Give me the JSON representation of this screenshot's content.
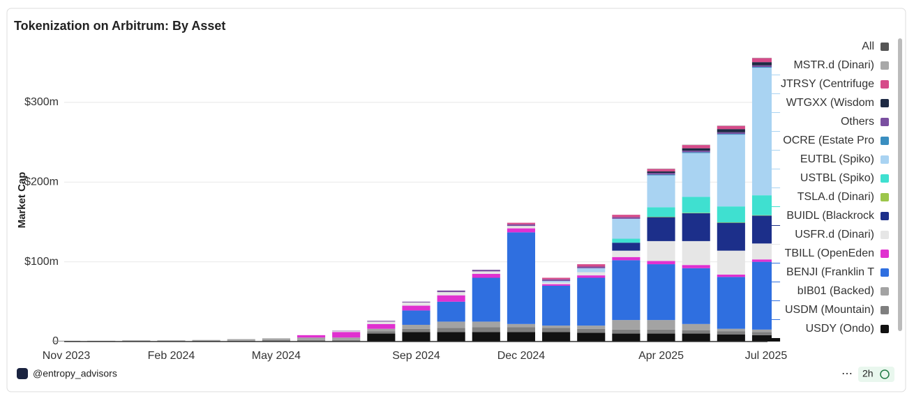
{
  "chart_data": {
    "type": "stacked_bar",
    "title": "Tokenization on Arbitrum: By Asset",
    "y_label": "Market Cap",
    "legend_all": "All",
    "legend_all_color": "#555555",
    "footer_handle": "@entropy_advisors",
    "footer_menu": "⋯",
    "footer_refresh": "2h",
    "x": [
      "2023-11",
      "2023-12",
      "2024-01",
      "2024-02",
      "2024-03",
      "2024-04",
      "2024-05",
      "2024-06",
      "2024-07",
      "2024-08",
      "2024-09",
      "2024-10",
      "2024-11",
      "2024-12",
      "2025-01",
      "2025-02",
      "2025-03",
      "2025-04",
      "2025-05",
      "2025-06",
      "2025-07"
    ],
    "xticks": [
      {
        "value": "2023-11",
        "label": "Nov 2023"
      },
      {
        "value": "2024-02",
        "label": "Feb 2024"
      },
      {
        "value": "2024-05",
        "label": "May 2024"
      },
      {
        "value": "2024-09",
        "label": "Sep 2024"
      },
      {
        "value": "2024-12",
        "label": "Dec 2024"
      },
      {
        "value": "2025-04",
        "label": "Apr 2025"
      },
      {
        "value": "2025-07",
        "label": "Jul 2025"
      }
    ],
    "ylim": [
      0,
      376
    ],
    "yticks": [
      0,
      {
        "value": 100,
        "label": "$100m"
      },
      {
        "value": 200,
        "label": "$200m"
      },
      {
        "value": 300,
        "label": "$300m"
      }
    ],
    "grid": true,
    "series": [
      {
        "name": "USDY (Ondo)",
        "color": "#111111",
        "values": [
          0,
          0,
          0,
          0,
          0,
          0,
          0,
          0,
          0,
          10,
          12,
          12,
          12,
          12,
          12,
          11,
          10,
          10,
          10,
          9,
          8
        ]
      },
      {
        "name": "USDM (Mountain)",
        "color": "#7f7f7f",
        "values": [
          0.5,
          0.5,
          0.5,
          0.5,
          1,
          1,
          2,
          2,
          2,
          3,
          4,
          5,
          6,
          6,
          5,
          5,
          5,
          5,
          4,
          4,
          4
        ]
      },
      {
        "name": "bIB01 (Backed)",
        "color": "#a3a3a3",
        "values": [
          0.5,
          0.5,
          1,
          1,
          1,
          2,
          2,
          3,
          3,
          3,
          5,
          8,
          7,
          4,
          3,
          4,
          12,
          12,
          8,
          3,
          3
        ]
      },
      {
        "name": "BENJI (Franklin T",
        "color": "#2f6fe0",
        "values": [
          0,
          0,
          0,
          0,
          0,
          0,
          0,
          0,
          0,
          0,
          18,
          25,
          55,
          115,
          50,
          60,
          75,
          70,
          70,
          65,
          85
        ]
      },
      {
        "name": "TBILL (OpenEden",
        "color": "#e030d0",
        "values": [
          0,
          0,
          0,
          0,
          0,
          0,
          0,
          3,
          7,
          6,
          6,
          8,
          5,
          5,
          2,
          3,
          4,
          4,
          4,
          3,
          3
        ]
      },
      {
        "name": "USFR.d (Dinari)",
        "color": "#e6e6e6",
        "values": [
          0,
          0,
          0,
          0,
          0,
          0,
          0,
          0,
          1,
          3,
          4,
          4,
          3,
          3,
          2,
          4,
          8,
          25,
          30,
          30,
          20
        ]
      },
      {
        "name": "BUIDL (Blackrock",
        "color": "#1c2f8a",
        "values": [
          0,
          0,
          0,
          0,
          0,
          0,
          0,
          0,
          0,
          0,
          0,
          0,
          0,
          0,
          0,
          0,
          10,
          30,
          35,
          35,
          35
        ]
      },
      {
        "name": "TSLA.d (Dinari)",
        "color": "#9cc64a",
        "values": [
          0,
          0,
          0,
          0,
          0,
          0,
          0,
          0,
          0,
          0,
          0,
          0,
          0,
          0,
          0,
          0,
          0,
          0.5,
          0.5,
          0.5,
          0.5
        ]
      },
      {
        "name": "USTBL (Spiko)",
        "color": "#3fe0d0",
        "values": [
          0,
          0,
          0,
          0,
          0,
          0,
          0,
          0,
          0,
          0,
          0,
          0,
          0,
          0,
          0,
          0,
          5,
          12,
          20,
          20,
          25
        ]
      },
      {
        "name": "EUTBL (Spiko)",
        "color": "#a9d3f2",
        "values": [
          0,
          0,
          0,
          0,
          0,
          0,
          0,
          0,
          0,
          0,
          0,
          0,
          0,
          0,
          2,
          5,
          25,
          40,
          55,
          90,
          160
        ]
      },
      {
        "name": "OCRE (Estate Pro",
        "color": "#3a8ec0",
        "values": [
          0,
          0,
          0,
          0,
          0,
          0,
          0,
          0,
          0,
          0,
          0,
          0,
          0,
          0,
          0,
          0,
          0,
          1,
          1,
          1,
          1
        ]
      },
      {
        "name": "Others",
        "color": "#7a4fa0",
        "values": [
          0,
          0,
          0,
          0,
          0,
          0,
          0,
          0,
          0.5,
          1,
          1,
          2,
          2,
          2,
          2,
          2,
          2,
          2,
          2,
          2,
          2
        ]
      },
      {
        "name": "WTGXX (Wisdom",
        "color": "#1e2a44",
        "values": [
          0,
          0,
          0,
          0,
          0,
          0,
          0,
          0,
          0,
          0,
          0,
          0,
          0,
          0,
          0,
          0,
          0,
          2,
          3,
          4,
          4
        ]
      },
      {
        "name": "JTRSY (Centrifuge",
        "color": "#d64b8a",
        "values": [
          0,
          0,
          0,
          0,
          0,
          0,
          0,
          0,
          0,
          0,
          0,
          0,
          0,
          2,
          2,
          3,
          3,
          3,
          4,
          4,
          5
        ]
      },
      {
        "name": "MSTR.d (Dinari)",
        "color": "#a8a8a8",
        "values": [
          0,
          0,
          0,
          0,
          0,
          0,
          0,
          0,
          0,
          0,
          0,
          0,
          0,
          0,
          0,
          0,
          0,
          0.5,
          0.5,
          0.5,
          0.5
        ]
      }
    ]
  }
}
